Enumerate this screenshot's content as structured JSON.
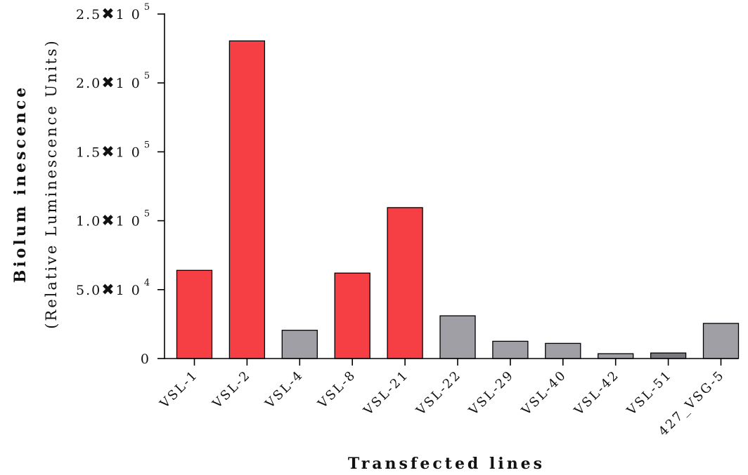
{
  "chart_data": {
    "type": "bar",
    "xlabel": "Transfected lines",
    "ylabel": "Biolum inescence",
    "ylabel_sub": "(Relative Luminescence Units)",
    "categories": [
      "VSL-1",
      "VSL-2",
      "VSL-4",
      "VSL-8",
      "VSL-21",
      "VSL-22",
      "VSL-29",
      "VSL-40",
      "VSL-42",
      "VSL-51",
      "427_VSG-5"
    ],
    "values": [
      64000,
      230500,
      20500,
      62000,
      109500,
      31000,
      12500,
      11000,
      3500,
      4000,
      25500
    ],
    "colors": [
      "#f53f45",
      "#f53f45",
      "#a09fa5",
      "#f53f45",
      "#f53f45",
      "#a09fa5",
      "#a09fa5",
      "#a09fa5",
      "#a09fa5",
      "#7a7a7e",
      "#a09fa5"
    ],
    "ylim": [
      0,
      250000
    ],
    "yticks": [
      {
        "value": 0,
        "label": "0",
        "mantissa": "",
        "exponent": ""
      },
      {
        "value": 50000,
        "label": "",
        "mantissa": "5.0",
        "exponent": "4"
      },
      {
        "value": 100000,
        "label": "",
        "mantissa": "1.0",
        "exponent": "5"
      },
      {
        "value": 150000,
        "label": "",
        "mantissa": "1.5",
        "exponent": "5"
      },
      {
        "value": 200000,
        "label": "",
        "mantissa": "2.0",
        "exponent": "5"
      },
      {
        "value": 250000,
        "label": "",
        "mantissa": "2.5",
        "exponent": "5"
      }
    ],
    "tick_times_symbol": "✖",
    "tick_base": "1 0",
    "grid": false,
    "legend": "none"
  }
}
